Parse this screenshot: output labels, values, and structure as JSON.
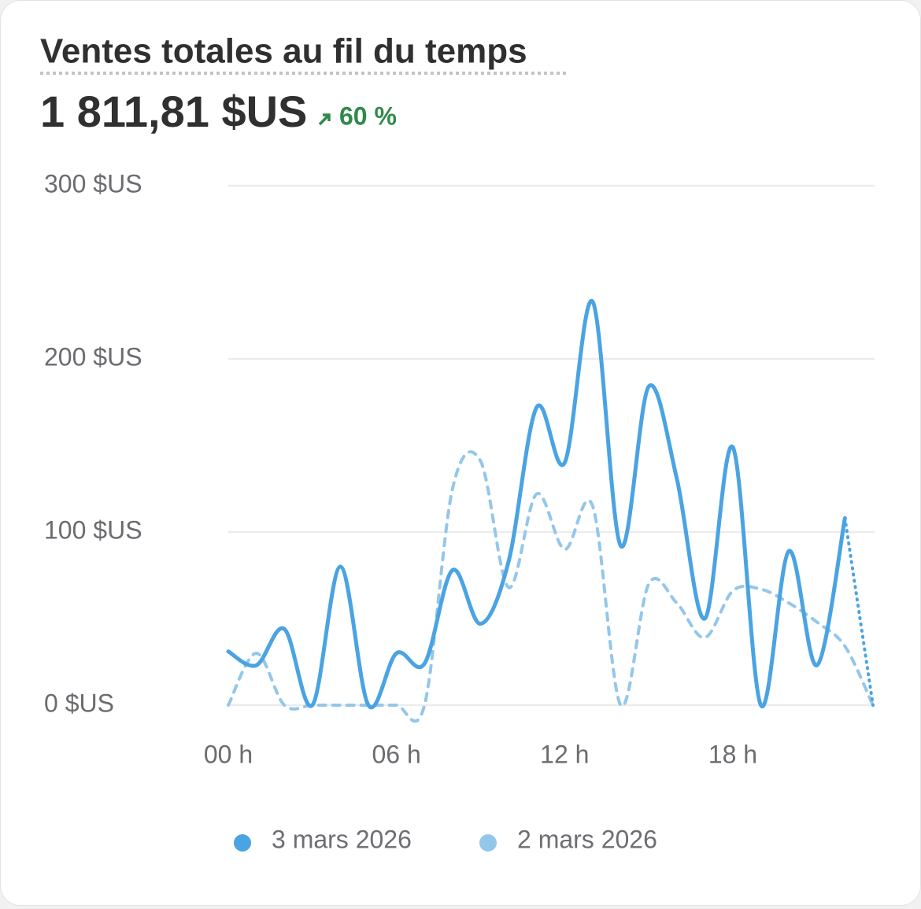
{
  "chart_data": {
    "type": "line",
    "title": "Ventes totales au fil du temps",
    "total": "1 811,81 $US",
    "change": "60 %",
    "x": [
      0,
      1,
      2,
      3,
      4,
      5,
      6,
      7,
      8,
      9,
      10,
      11,
      12,
      13,
      14,
      15,
      16,
      17,
      18,
      19,
      20,
      21,
      22,
      23
    ],
    "xlim": [
      0,
      23
    ],
    "xticks": [
      {
        "value": 0,
        "label": "00 h"
      },
      {
        "value": 6,
        "label": "06 h"
      },
      {
        "value": 12,
        "label": "12 h"
      },
      {
        "value": 18,
        "label": "18 h"
      }
    ],
    "ylim": [
      0,
      300
    ],
    "yticks": [
      {
        "value": 0,
        "label": "0 $US"
      },
      {
        "value": 100,
        "label": "100 $US"
      },
      {
        "value": 200,
        "label": "200 $US"
      },
      {
        "value": 300,
        "label": "300 $US"
      }
    ],
    "grid": true,
    "series": [
      {
        "name": "3 mars 2026",
        "color": "#4aa3e2",
        "values": [
          31,
          23,
          44,
          0,
          80,
          0,
          30,
          24,
          78,
          47,
          83,
          172,
          140,
          233,
          92,
          184,
          131,
          50,
          149,
          0,
          89,
          23,
          108,
          0
        ]
      },
      {
        "name": "2 mars 2026",
        "color": "#93c7ea",
        "values": [
          0,
          30,
          0,
          0,
          0,
          0,
          0,
          0,
          125,
          141,
          68,
          122,
          90,
          115,
          0,
          70,
          59,
          39,
          66,
          67,
          59,
          48,
          34,
          0
        ]
      }
    ]
  }
}
